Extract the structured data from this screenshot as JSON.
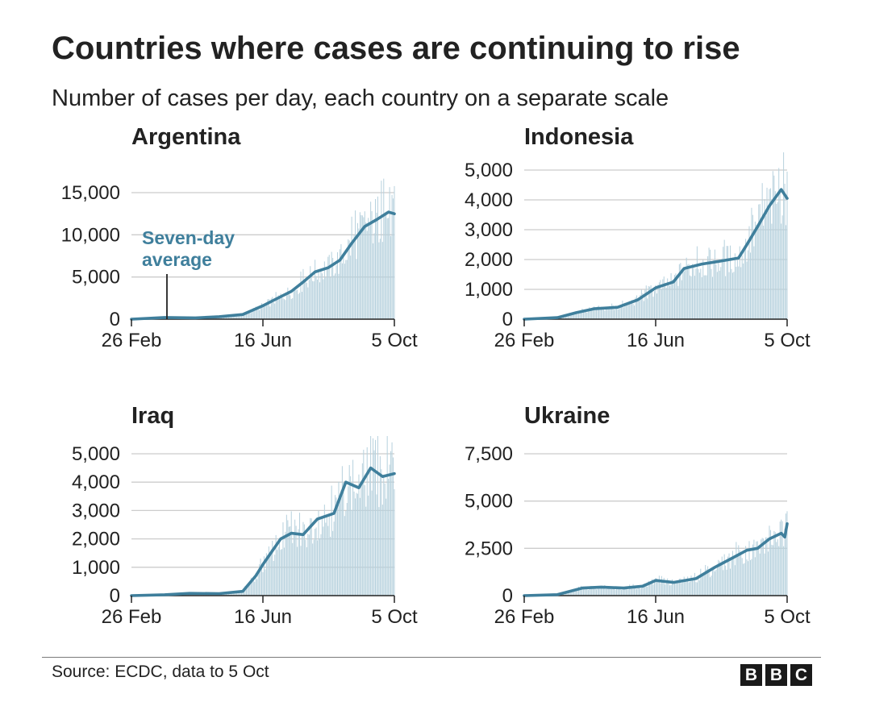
{
  "header": {
    "title": "Countries where cases are continuing to rise",
    "subtitle": "Number of cases per day, each country on a separate scale"
  },
  "footer": {
    "source": "Source: ECDC, data to 5 Oct",
    "logo_letters": [
      "B",
      "B",
      "C"
    ]
  },
  "colors": {
    "bar": "#b8d2de",
    "line": "#3f7f9c",
    "grid": "#cccccc",
    "annotation_text": "#3f7f9c"
  },
  "chart_data": [
    {
      "type": "bar",
      "title": "Argentina",
      "xlabel": "",
      "ylabel": "",
      "x_ticks": [
        "26 Feb",
        "16 Jun",
        "5 Oct"
      ],
      "y_ticks": [
        "0",
        "5,000",
        "10,000",
        "15,000"
      ],
      "ylim": [
        0,
        16500
      ],
      "grid": true,
      "annotation": [
        "Seven-day",
        "average"
      ],
      "series": [
        {
          "x": [
            "26 Feb",
            "25 Mar",
            "20 Apr",
            "10 May",
            "30 May",
            "16 Jun",
            "30 Jun",
            "10 Jul",
            "20 Jul",
            "30 Jul",
            "10 Aug",
            "20 Aug",
            "30 Aug",
            "10 Sep",
            "20 Sep",
            "30 Sep",
            "5 Oct"
          ],
          "values": [
            0,
            200,
            150,
            300,
            550,
            1600,
            2600,
            3300,
            4400,
            5600,
            6100,
            7000,
            9000,
            11000,
            11800,
            12700,
            12500
          ]
        }
      ]
    },
    {
      "type": "bar",
      "title": "Indonesia",
      "xlabel": "",
      "ylabel": "",
      "x_ticks": [
        "26 Feb",
        "16 Jun",
        "5 Oct"
      ],
      "y_ticks": [
        "0",
        "1,000",
        "2,000",
        "3,000",
        "4,000",
        "5,000"
      ],
      "ylim": [
        0,
        5000
      ],
      "grid": true,
      "series": [
        {
          "x": [
            "26 Feb",
            "25 Mar",
            "10 Apr",
            "25 Apr",
            "15 May",
            "1 Jun",
            "16 Jun",
            "1 Jul",
            "10 Jul",
            "25 Jul",
            "10 Aug",
            "25 Aug",
            "1 Sep",
            "10 Sep",
            "20 Sep",
            "30 Sep",
            "5 Oct"
          ],
          "values": [
            0,
            50,
            220,
            350,
            400,
            650,
            1050,
            1250,
            1700,
            1850,
            1950,
            2050,
            2500,
            3100,
            3800,
            4350,
            4050
          ]
        }
      ]
    },
    {
      "type": "bar",
      "title": "Iraq",
      "xlabel": "",
      "ylabel": "",
      "x_ticks": [
        "26 Feb",
        "16 Jun",
        "5 Oct"
      ],
      "y_ticks": [
        "0",
        "1,000",
        "2,000",
        "3,000",
        "4,000",
        "5,000"
      ],
      "ylim": [
        0,
        5000
      ],
      "grid": true,
      "series": [
        {
          "x": [
            "26 Feb",
            "25 Mar",
            "15 Apr",
            "10 May",
            "30 May",
            "10 Jun",
            "16 Jun",
            "1 Jul",
            "10 Jul",
            "20 Jul",
            "1 Aug",
            "15 Aug",
            "25 Aug",
            "5 Sep",
            "15 Sep",
            "25 Sep",
            "5 Oct"
          ],
          "values": [
            0,
            30,
            80,
            70,
            150,
            700,
            1100,
            2000,
            2200,
            2150,
            2700,
            2900,
            4000,
            3800,
            4500,
            4200,
            4300
          ]
        }
      ]
    },
    {
      "type": "bar",
      "title": "Ukraine",
      "xlabel": "",
      "ylabel": "",
      "x_ticks": [
        "26 Feb",
        "16 Jun",
        "5 Oct"
      ],
      "y_ticks": [
        "0",
        "2,500",
        "5,000",
        "7,500"
      ],
      "ylim": [
        0,
        8000
      ],
      "grid": true,
      "series": [
        {
          "x": [
            "26 Feb",
            "25 Mar",
            "15 Apr",
            "1 May",
            "20 May",
            "5 Jun",
            "16 Jun",
            "1 Jul",
            "20 Jul",
            "5 Aug",
            "20 Aug",
            "1 Sep",
            "10 Sep",
            "20 Sep",
            "30 Sep",
            "3 Oct",
            "5 Oct"
          ],
          "values": [
            0,
            50,
            400,
            450,
            400,
            500,
            800,
            700,
            900,
            1500,
            2000,
            2400,
            2500,
            3000,
            3300,
            3100,
            3800
          ]
        }
      ]
    }
  ]
}
